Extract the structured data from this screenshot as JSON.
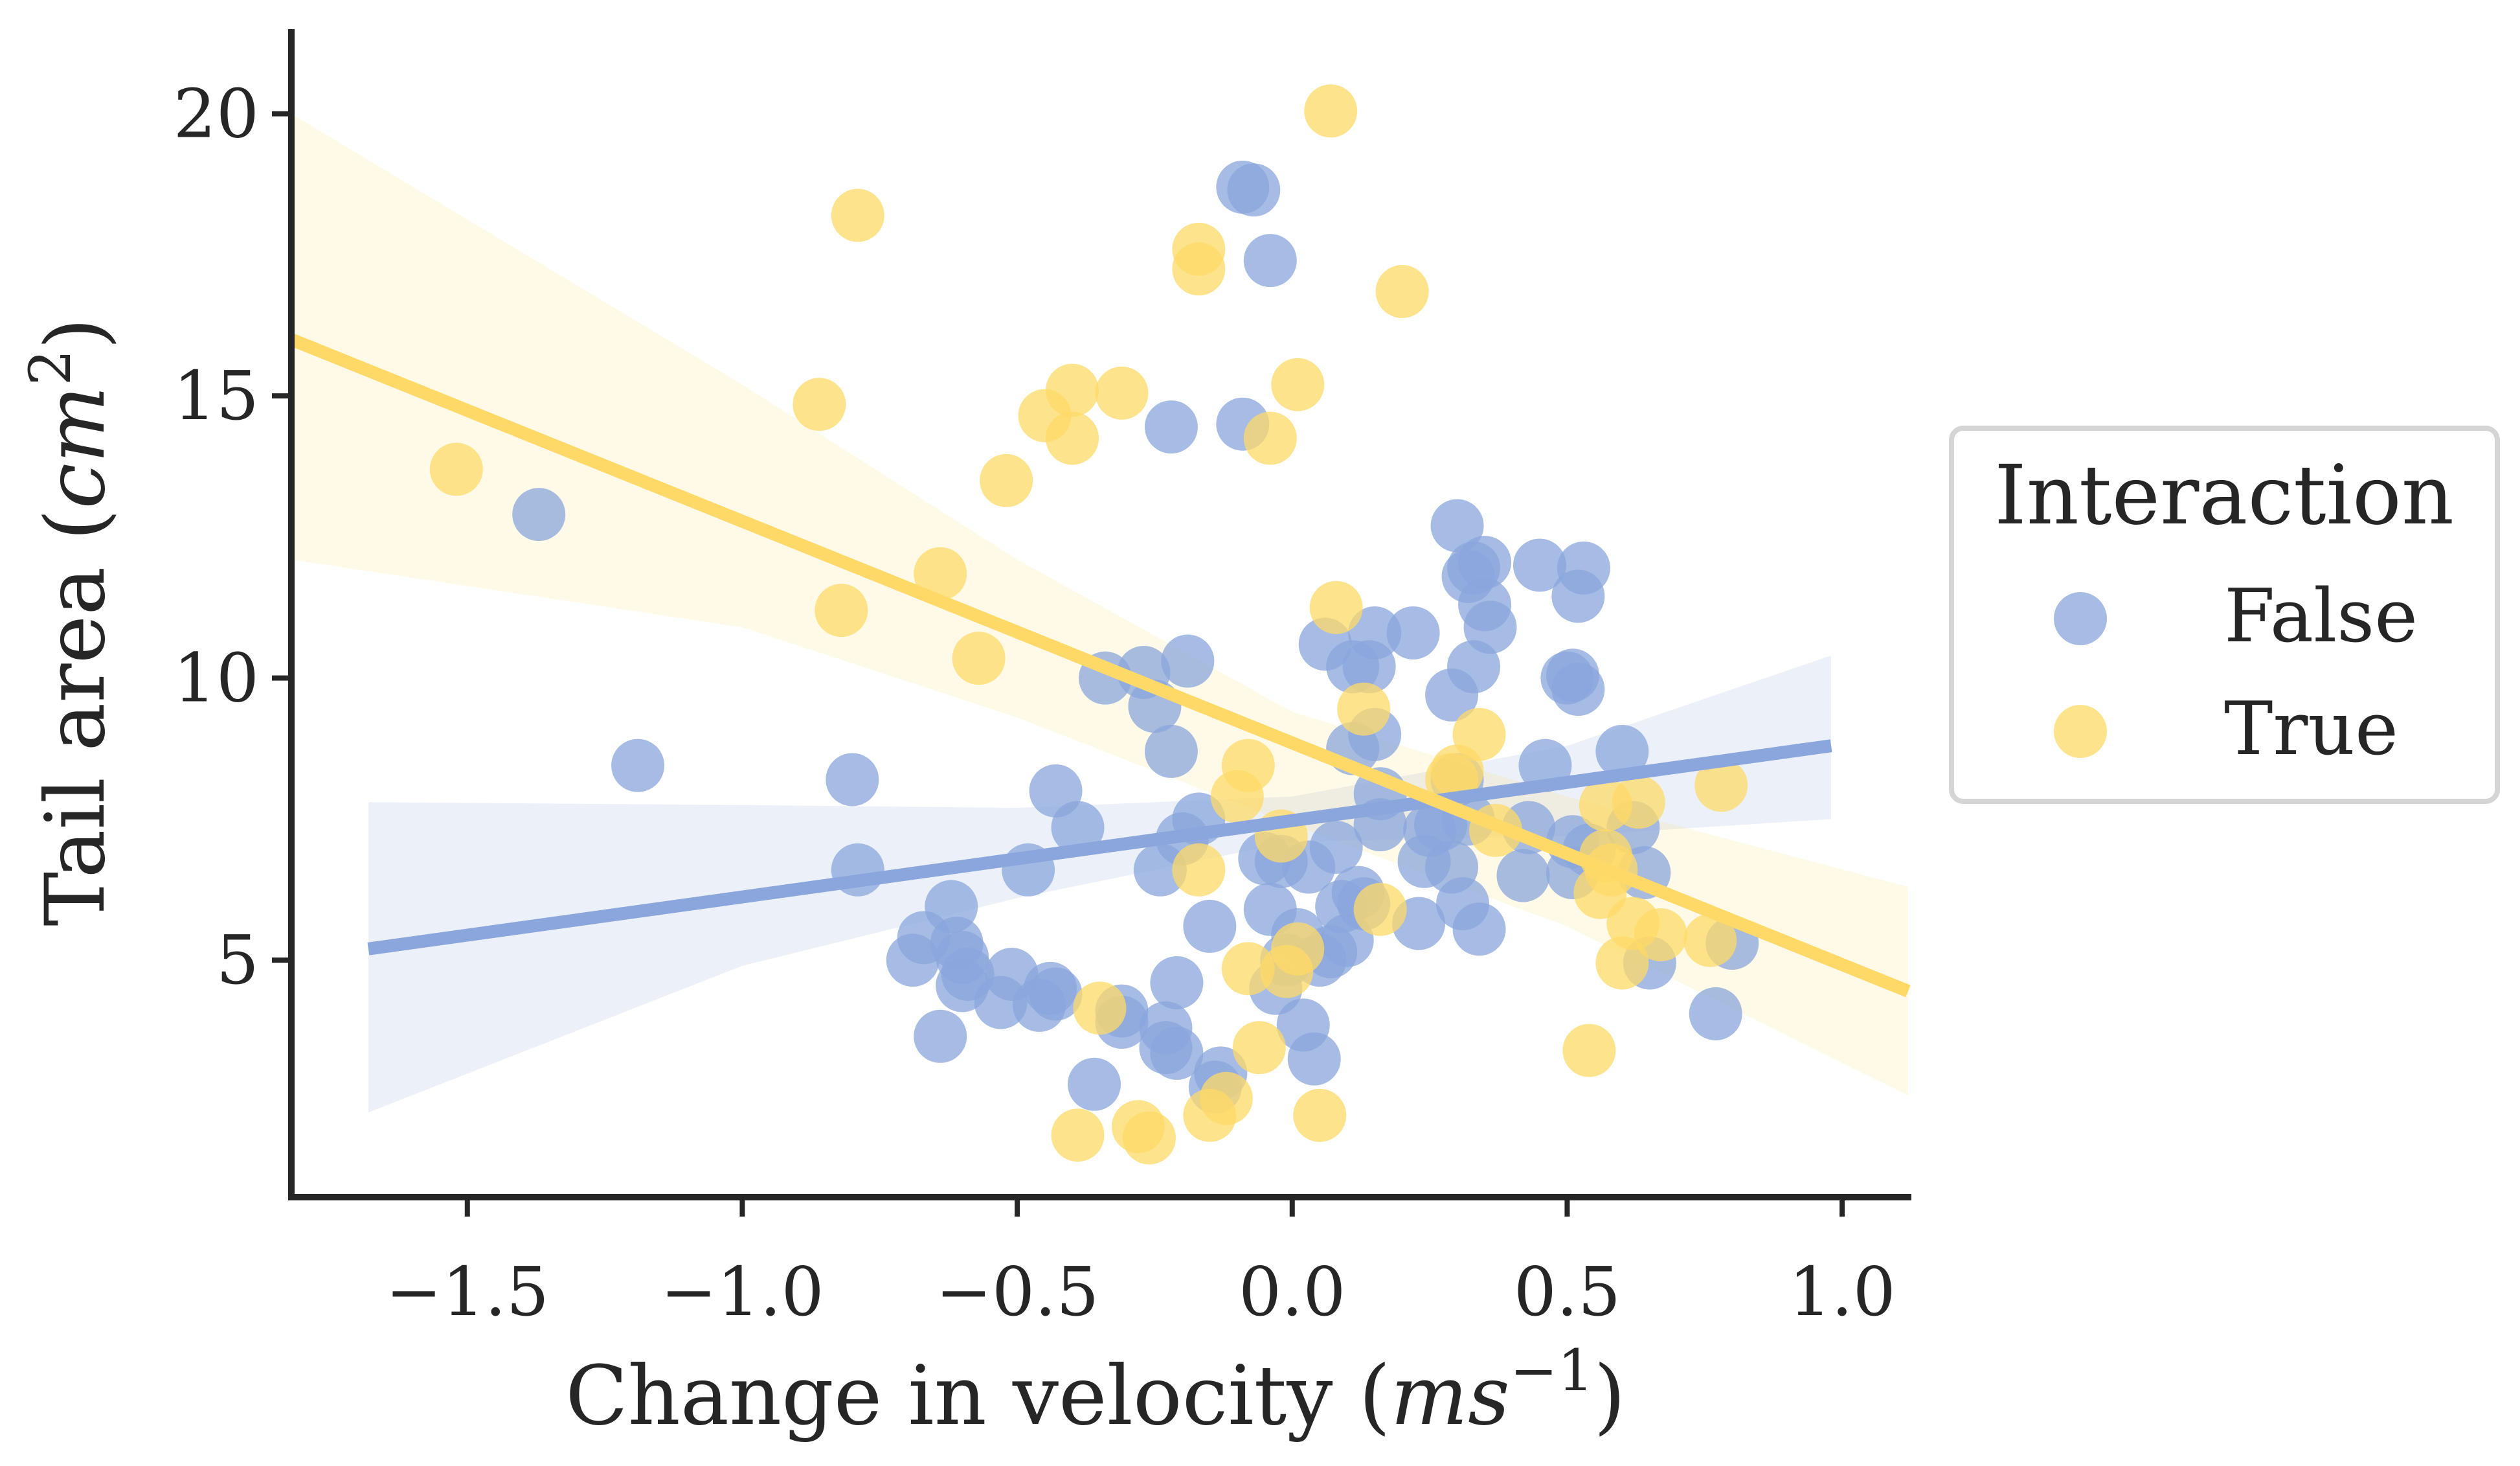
{
  "chart_data": {
    "type": "scatter",
    "title": "",
    "xlabel": "Change in velocity (",
    "xlabel_math": "ms",
    "xlabel_sup": "−1",
    "xlabel_close": ")",
    "ylabel": "Tail area (",
    "ylabel_math": "cm",
    "ylabel_sup": "2",
    "ylabel_close": ")",
    "xlim": [
      -1.82,
      1.12
    ],
    "ylim": [
      0.8,
      21.5
    ],
    "xticks": [
      -1.5,
      -1.0,
      -0.5,
      0.0,
      0.5,
      1.0
    ],
    "xtick_labels": [
      "−1.5",
      "−1.0",
      "−0.5",
      "0.0",
      "0.5",
      "1.0"
    ],
    "yticks": [
      5,
      10,
      15,
      20
    ],
    "ytick_labels": [
      "5",
      "10",
      "15",
      "20"
    ],
    "legend": {
      "title": "Interaction",
      "position": "center-right outside"
    },
    "series": [
      {
        "name": "False",
        "color": "#8aa6dc",
        "regression": {
          "x": [
            -1.68,
            0.98
          ],
          "y": [
            5.2,
            8.8
          ]
        },
        "ci_band": {
          "x": [
            -1.68,
            -1.0,
            -0.5,
            0.0,
            0.5,
            0.98
          ],
          "upper": [
            7.8,
            7.75,
            7.7,
            7.9,
            8.8,
            10.4
          ],
          "lower": [
            2.3,
            4.9,
            6.1,
            7.1,
            7.2,
            7.5
          ]
        },
        "points": [
          [
            -1.37,
            12.9
          ],
          [
            -1.19,
            8.45
          ],
          [
            -0.8,
            8.2
          ],
          [
            -0.79,
            6.6
          ],
          [
            -0.69,
            5.0
          ],
          [
            -0.67,
            5.4
          ],
          [
            -0.64,
            3.65
          ],
          [
            -0.62,
            5.95
          ],
          [
            -0.61,
            5.3
          ],
          [
            -0.6,
            5.05
          ],
          [
            -0.6,
            4.55
          ],
          [
            -0.59,
            4.75
          ],
          [
            -0.53,
            4.25
          ],
          [
            -0.51,
            4.75
          ],
          [
            -0.48,
            6.6
          ],
          [
            -0.46,
            4.2
          ],
          [
            -0.44,
            4.5
          ],
          [
            -0.43,
            8.0
          ],
          [
            -0.43,
            4.4
          ],
          [
            -0.39,
            7.35
          ],
          [
            -0.36,
            2.8
          ],
          [
            -0.34,
            10.0
          ],
          [
            -0.31,
            4.1
          ],
          [
            -0.31,
            3.9
          ],
          [
            -0.27,
            10.1
          ],
          [
            -0.25,
            9.5
          ],
          [
            -0.24,
            6.6
          ],
          [
            -0.23,
            3.8
          ],
          [
            -0.23,
            3.45
          ],
          [
            -0.22,
            8.7
          ],
          [
            -0.22,
            14.45
          ],
          [
            -0.21,
            4.6
          ],
          [
            -0.21,
            3.35
          ],
          [
            -0.2,
            7.15
          ],
          [
            -0.19,
            10.3
          ],
          [
            -0.17,
            7.5
          ],
          [
            -0.15,
            5.6
          ],
          [
            -0.14,
            2.75
          ],
          [
            -0.13,
            3.0
          ],
          [
            -0.09,
            18.7
          ],
          [
            -0.09,
            14.5
          ],
          [
            -0.07,
            18.65
          ],
          [
            -0.05,
            6.8
          ],
          [
            -0.04,
            17.4
          ],
          [
            -0.04,
            5.9
          ],
          [
            -0.03,
            4.5
          ],
          [
            -0.02,
            6.75
          ],
          [
            -0.01,
            5.0
          ],
          [
            0.01,
            5.45
          ],
          [
            0.02,
            3.85
          ],
          [
            0.03,
            6.65
          ],
          [
            0.04,
            3.25
          ],
          [
            0.05,
            5.0
          ],
          [
            0.06,
            10.6
          ],
          [
            0.07,
            5.15
          ],
          [
            0.08,
            7.0
          ],
          [
            0.09,
            5.95
          ],
          [
            0.1,
            5.35
          ],
          [
            0.11,
            10.2
          ],
          [
            0.11,
            8.75
          ],
          [
            0.12,
            6.2
          ],
          [
            0.13,
            6.0
          ],
          [
            0.14,
            10.2
          ],
          [
            0.15,
            9.0
          ],
          [
            0.15,
            10.8
          ],
          [
            0.16,
            7.4
          ],
          [
            0.16,
            7.95
          ],
          [
            0.22,
            10.8
          ],
          [
            0.23,
            5.65
          ],
          [
            0.24,
            6.75
          ],
          [
            0.25,
            7.3
          ],
          [
            0.27,
            7.4
          ],
          [
            0.29,
            9.7
          ],
          [
            0.29,
            6.65
          ],
          [
            0.3,
            8.2
          ],
          [
            0.3,
            12.7
          ],
          [
            0.31,
            6.0
          ],
          [
            0.32,
            11.8
          ],
          [
            0.32,
            7.5
          ],
          [
            0.33,
            11.95
          ],
          [
            0.33,
            10.2
          ],
          [
            0.34,
            5.55
          ],
          [
            0.35,
            12.05
          ],
          [
            0.35,
            11.3
          ],
          [
            0.36,
            10.9
          ],
          [
            0.42,
            6.5
          ],
          [
            0.43,
            7.35
          ],
          [
            0.45,
            12.0
          ],
          [
            0.46,
            8.45
          ],
          [
            0.5,
            10.0
          ],
          [
            0.51,
            10.05
          ],
          [
            0.51,
            7.1
          ],
          [
            0.51,
            6.55
          ],
          [
            0.52,
            9.8
          ],
          [
            0.52,
            11.45
          ],
          [
            0.53,
            11.95
          ],
          [
            0.54,
            6.95
          ],
          [
            0.6,
            8.7
          ],
          [
            0.62,
            7.35
          ],
          [
            0.64,
            6.55
          ],
          [
            0.65,
            4.95
          ],
          [
            0.77,
            4.05
          ],
          [
            0.8,
            5.3
          ]
        ]
      },
      {
        "name": "True",
        "color": "#fed967",
        "regression": {
          "x": [
            -1.82,
            1.12
          ],
          "y": [
            16.0,
            4.45
          ]
        },
        "ci_band": {
          "x": [
            -1.82,
            -1.0,
            -0.5,
            0.0,
            0.5,
            1.12
          ],
          "upper": [
            20.0,
            15.2,
            12.1,
            9.4,
            7.9,
            6.3
          ],
          "lower": [
            12.1,
            10.9,
            9.3,
            7.4,
            5.6,
            2.6
          ]
        },
        "points": [
          [
            -1.52,
            13.7
          ],
          [
            -0.86,
            14.85
          ],
          [
            -0.82,
            11.2
          ],
          [
            -0.79,
            18.2
          ],
          [
            -0.64,
            11.85
          ],
          [
            -0.57,
            10.35
          ],
          [
            -0.52,
            13.5
          ],
          [
            -0.45,
            14.65
          ],
          [
            -0.4,
            15.1
          ],
          [
            -0.4,
            14.25
          ],
          [
            -0.39,
            1.9
          ],
          [
            -0.35,
            4.15
          ],
          [
            -0.31,
            15.05
          ],
          [
            -0.28,
            2.05
          ],
          [
            -0.26,
            1.85
          ],
          [
            -0.17,
            17.6
          ],
          [
            -0.17,
            17.25
          ],
          [
            -0.17,
            6.6
          ],
          [
            -0.15,
            2.25
          ],
          [
            -0.12,
            2.55
          ],
          [
            -0.1,
            7.9
          ],
          [
            -0.08,
            8.45
          ],
          [
            -0.08,
            4.85
          ],
          [
            -0.06,
            3.45
          ],
          [
            -0.04,
            14.25
          ],
          [
            -0.02,
            7.2
          ],
          [
            -0.01,
            4.8
          ],
          [
            0.01,
            15.2
          ],
          [
            0.01,
            5.2
          ],
          [
            0.05,
            2.25
          ],
          [
            0.07,
            20.05
          ],
          [
            0.08,
            11.25
          ],
          [
            0.13,
            9.45
          ],
          [
            0.16,
            5.9
          ],
          [
            0.2,
            16.85
          ],
          [
            0.29,
            8.2
          ],
          [
            0.3,
            8.35
          ],
          [
            0.34,
            9.0
          ],
          [
            0.37,
            7.3
          ],
          [
            0.54,
            3.4
          ],
          [
            0.56,
            6.2
          ],
          [
            0.57,
            7.75
          ],
          [
            0.57,
            6.85
          ],
          [
            0.58,
            6.6
          ],
          [
            0.6,
            4.95
          ],
          [
            0.62,
            5.65
          ],
          [
            0.63,
            7.8
          ],
          [
            0.67,
            5.45
          ],
          [
            0.76,
            5.35
          ],
          [
            0.78,
            8.1
          ]
        ]
      }
    ]
  }
}
